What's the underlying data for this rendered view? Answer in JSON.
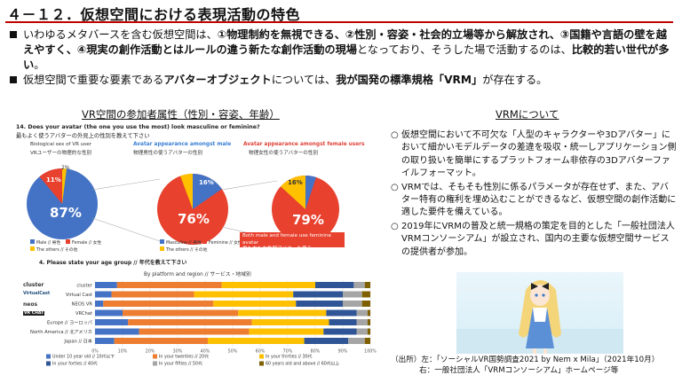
{
  "title": "４－１２．仮想空間における表現活動の特色",
  "bullets": [
    {
      "pre": "いわゆるメタバースを含む仮想空間は、",
      "bold1": "①物理制約を無視できる、②性別・容姿・社会的立場等から解放され、③国籍や言語の壁を越えやすく、④現実の創作活動とはルールの違う新たな創作活動の現場",
      "mid": "となっており、そうした場で活動するのは、",
      "bold2": "比較的若い世代が多い",
      "post": "。"
    },
    {
      "pre": "仮想空間で重要な要素である",
      "bold1": "アバターオブジェクト",
      "mid": "については、",
      "bold2": "我が国発の標準規格「VRM」",
      "post": "が存在する。"
    }
  ],
  "left_heading": "VR空間の参加者属性（性別・容姿、年齢）",
  "right_heading": "VRMについて",
  "q14": {
    "en": "14. Does your avatar (the one you use the most) look masculine or feminine?",
    "jp": "最もよく使うアバターの外見上の性別を教えて下さい"
  },
  "pies": [
    {
      "title_en": "Biological sex of VR user",
      "title_jp": "VRユーザーの物理的な性別",
      "big": "87%",
      "small1": "11%",
      "small2": "2%",
      "title_color": "#333333"
    },
    {
      "title_en": "Avatar appearance amongst male",
      "title_jp": "物理男性の使うアバターの性別",
      "big": "76%",
      "small1": "16%",
      "small2": "",
      "title_color": "#3a7fd5"
    },
    {
      "title_en": "Avatar appearance amongst female users",
      "title_jp": "物理女性の使うアバターの性別",
      "big": "79%",
      "small1": "16%",
      "small2": "",
      "title_color": "#e0433a"
    }
  ],
  "pie_note": "Both male and female use feminine avatar\n男も女も女性型アバターを使う",
  "pie1_legend": [
    "Male // 男性",
    "Female // 女性",
    "The others // その他"
  ],
  "pie2_legend": [
    "Masculine // 男性",
    "Feminine // 女性",
    "The others // その他"
  ],
  "q4": "4. Please state your age group // 年代を教えて下さい",
  "chart_subtitle": "By platform and region // サービス・地域別",
  "logos": [
    "cluster",
    "VirtualCast",
    "neos",
    "VR CHAT",
    "",
    "",
    ""
  ],
  "chart_data": {
    "type": "bar",
    "orientation": "horizontal-stacked-percent",
    "categories": [
      "cluster",
      "Virtual Cast",
      "NEOS VR",
      "VRChat",
      "Europe // ヨーロッパ",
      "North America // 北アメリカ",
      "Japan // 日本"
    ],
    "series": [
      {
        "name": "Under 10 year old // 10代以下",
        "color": "#4472c4",
        "values": [
          8,
          6,
          3,
          10,
          12,
          16,
          7
        ]
      },
      {
        "name": "In your twenties // 20代",
        "color": "#ed7d31",
        "values": [
          38,
          30,
          40,
          42,
          45,
          40,
          34
        ]
      },
      {
        "name": "In your thirties // 30代",
        "color": "#ffc000",
        "values": [
          34,
          36,
          30,
          32,
          28,
          27,
          35
        ]
      },
      {
        "name": "In your forties // 40代",
        "color": "#2f5597",
        "values": [
          14,
          18,
          17,
          11,
          10,
          12,
          16
        ]
      },
      {
        "name": "In your fifties // 50代",
        "color": "#a5a5a5",
        "values": [
          4,
          7,
          7,
          4,
          4,
          4,
          6
        ]
      },
      {
        "name": "60 years old and above // 60代以上",
        "color": "#7f6000",
        "values": [
          2,
          3,
          3,
          1,
          1,
          1,
          2
        ]
      }
    ],
    "xticks": [
      "0%",
      "10%",
      "20%",
      "30%",
      "40%",
      "50%",
      "60%",
      "70%",
      "80%",
      "90%",
      "100%"
    ],
    "xlim": [
      0,
      100
    ]
  },
  "vrm_items": [
    "仮想空間において不可欠な「人型のキャラクターや3Dアバター」において細かいモデルデータの差違を吸収・統一しアプリケーション側の取り扱いを簡単にするプラットフォーム非依存の3Dアバターファイルフォーマット。",
    "VRMでは、そもそも性別に係るパラメータが存在せず、また、アバター特有の権利を埋め込むことができるなど、仮想空間の創作活動に適した要件を備えている。",
    "2019年にVRMの普及と統一規格の策定を目的とした「一般社団法人VRMコンソーシアム」が設立され、国内の主要な仮想空間サービスの提供者が参加。"
  ],
  "vrm_bullet": "○",
  "source_lines": [
    "（出所）左：「ソーシャルVR国勢調査2021 by Nem x Mila」（2021年10月）",
    "右：一般社団法人「VRMコンソーシアム」ホームページ等"
  ]
}
